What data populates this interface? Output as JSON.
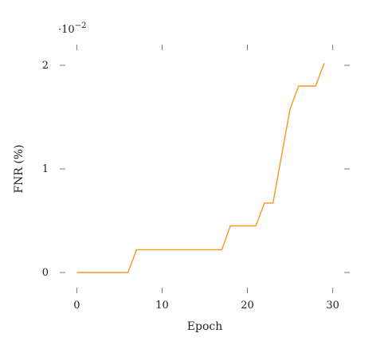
{
  "chart_data": {
    "type": "line",
    "title": "",
    "xlabel": "Epoch",
    "ylabel": "FNR (%)",
    "y_multiplier": "·10",
    "y_multiplier_exp": "−2",
    "xlim": [
      -2,
      32
    ],
    "ylim": [
      -0.2,
      2.2
    ],
    "x_ticks": [
      0,
      10,
      20,
      30
    ],
    "x_tick_labels": [
      "0",
      "10",
      "20",
      "30"
    ],
    "y_ticks": [
      0,
      1,
      2
    ],
    "y_tick_labels": [
      "0",
      "1",
      "2"
    ],
    "grid": false,
    "line_color": "#f39a1d",
    "series": [
      {
        "x": [
          0,
          6,
          7,
          17,
          18,
          21,
          22,
          23,
          25,
          26,
          28,
          29
        ],
        "y": [
          0,
          0,
          0.22,
          0.22,
          0.45,
          0.45,
          0.67,
          0.67,
          1.58,
          1.8,
          1.8,
          2.02
        ]
      }
    ]
  }
}
